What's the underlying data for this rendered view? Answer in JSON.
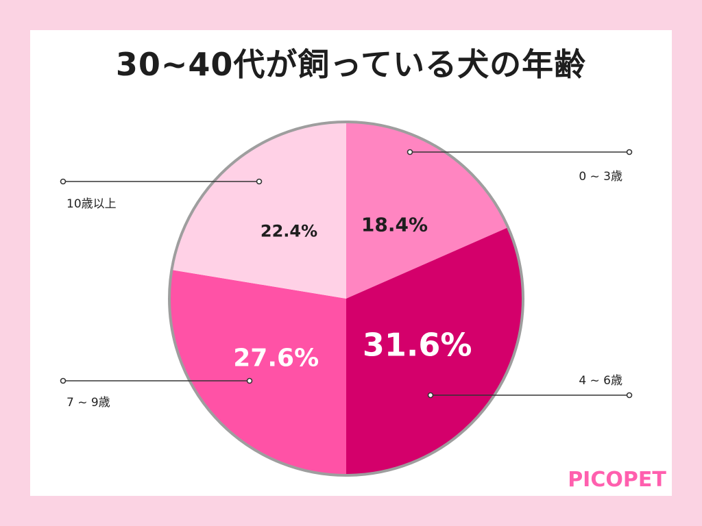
{
  "title": "30~40代が飼っている犬の年齢",
  "brand": "PICOPET",
  "colors": {
    "background": "#fbd3e3",
    "outline": "#9e9e9e",
    "logo": "#ff5fae"
  },
  "chart_data": {
    "type": "pie",
    "title": "30~40代が飼っている犬の年齢",
    "start_angle_deg": 0,
    "direction": "clockwise",
    "slices": [
      {
        "label": "0 ~ 3歳",
        "value": 18.4,
        "value_label": "18.4%",
        "color": "#ff85c1",
        "text_color": "#1e1e1e"
      },
      {
        "label": "4 ~ 6歳",
        "value": 31.6,
        "value_label": "31.6%",
        "color": "#d4006b",
        "text_color": "#ffffff"
      },
      {
        "label": "7 ~ 9歳",
        "value": 27.6,
        "value_label": "27.6%",
        "color": "#ff52a6",
        "text_color": "#ffffff"
      },
      {
        "label": "10歳以上",
        "value": 22.4,
        "value_label": "22.4%",
        "color": "#ffd1e6",
        "text_color": "#1e1e1e"
      }
    ]
  }
}
